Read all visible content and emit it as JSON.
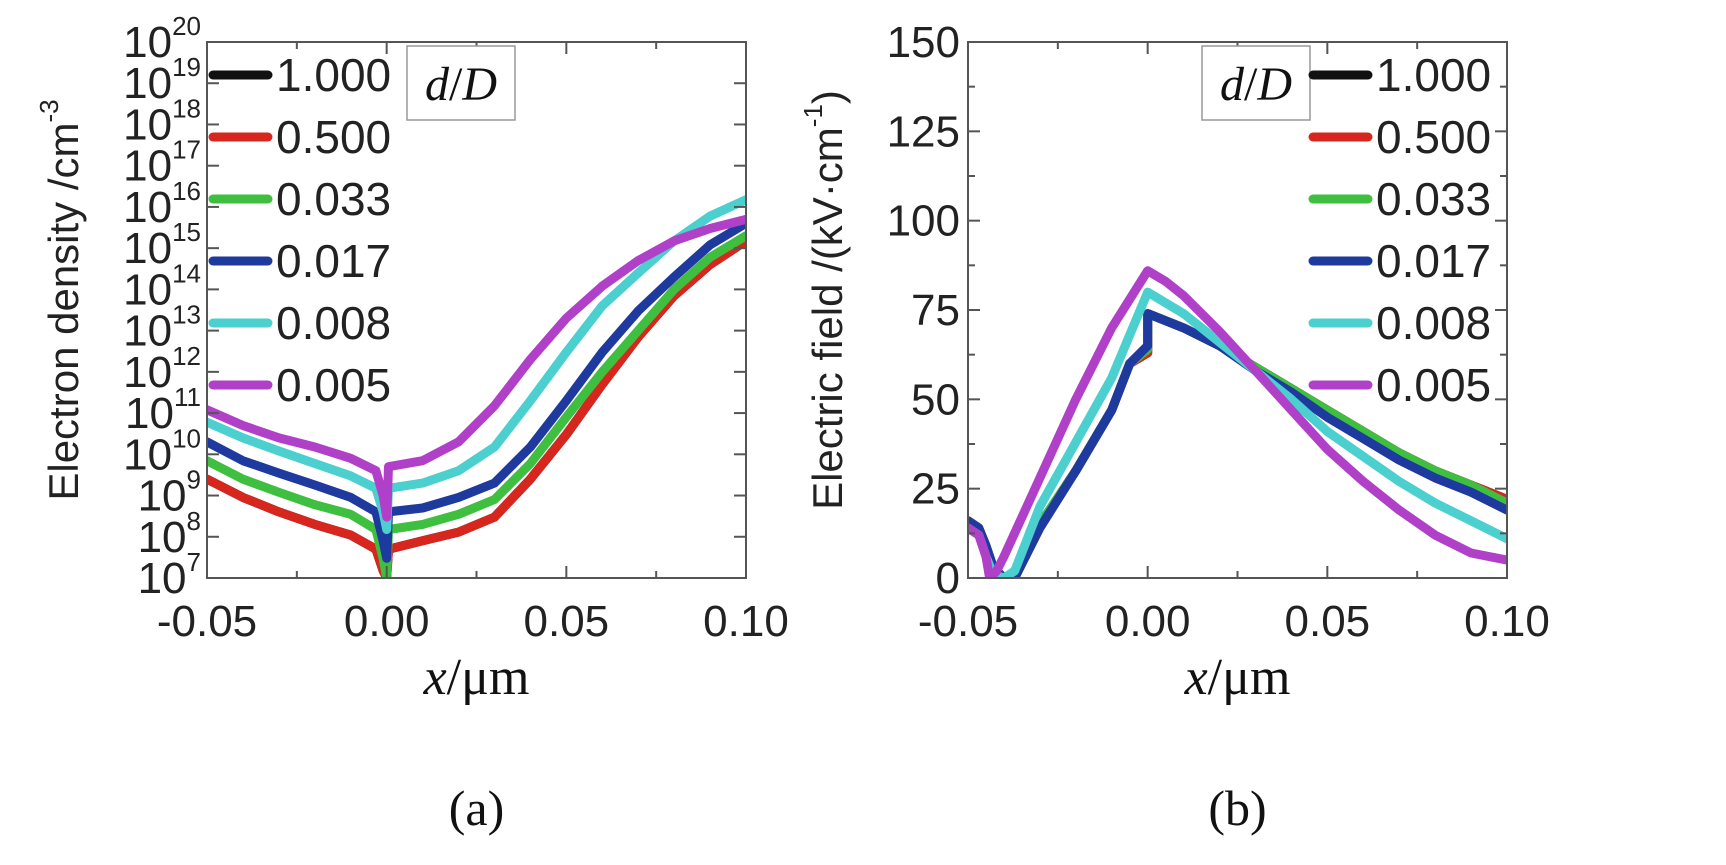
{
  "chart_data": [
    {
      "type": "line",
      "panel_label": "(a)",
      "xlabel": "x/μm",
      "xlabel_var": "x",
      "xlabel_unit": "/μm",
      "ylabel": "Electron density /cm⁻³",
      "ylabel_main": "Electron density /cm",
      "ylabel_exp": "-3",
      "y_scale": "log",
      "xlim": [
        -0.05,
        0.1
      ],
      "ylim": [
        10000000.0,
        1e+20
      ],
      "x_ticks": [
        -0.05,
        0.0,
        0.05,
        0.1
      ],
      "x_tick_labels": [
        "-0.05",
        "0.00",
        "0.05",
        "0.10"
      ],
      "y_tick_exponents": [
        7,
        8,
        9,
        10,
        11,
        12,
        13,
        14,
        15,
        16,
        17,
        18,
        19,
        20
      ],
      "y_tick_base": "10",
      "legend": {
        "title_var": "d",
        "title_slash": "/",
        "title_var2": "D",
        "placement": "upper-left"
      },
      "series": [
        {
          "name": "1.000",
          "color": "#111111",
          "x": [
            -0.05,
            -0.04,
            -0.03,
            -0.02,
            -0.01,
            -0.003,
            -0.001,
            0.0,
            0.0005,
            0.01,
            0.02,
            0.03,
            0.04,
            0.05,
            0.06,
            0.07,
            0.08,
            0.09,
            0.1
          ],
          "y": [
            2500000000.0,
            900000000.0,
            400000000.0,
            200000000.0,
            110000000.0,
            50000000.0,
            15000000.0,
            10000000.0,
            50000000.0,
            80000000.0,
            130000000.0,
            300000000.0,
            2500000000.0,
            30000000000.0,
            500000000000.0,
            7000000000000.0,
            70000000000000.0,
            400000000000000.0,
            1500000000000000.0
          ]
        },
        {
          "name": "0.500",
          "color": "#d7261e",
          "x": [
            -0.05,
            -0.04,
            -0.03,
            -0.02,
            -0.01,
            -0.003,
            -0.001,
            0.0,
            0.0005,
            0.01,
            0.02,
            0.03,
            0.04,
            0.05,
            0.06,
            0.07,
            0.08,
            0.09,
            0.1
          ],
          "y": [
            2500000000.0,
            900000000.0,
            400000000.0,
            200000000.0,
            110000000.0,
            50000000.0,
            15000000.0,
            10000000.0,
            50000000.0,
            80000000.0,
            130000000.0,
            300000000.0,
            2500000000.0,
            30000000000.0,
            500000000000.0,
            7000000000000.0,
            70000000000000.0,
            400000000000000.0,
            1500000000000000.0
          ]
        },
        {
          "name": "0.033",
          "color": "#3fbf3f",
          "x": [
            -0.05,
            -0.04,
            -0.03,
            -0.02,
            -0.01,
            -0.003,
            -0.001,
            0.0,
            0.0005,
            0.01,
            0.02,
            0.03,
            0.04,
            0.05,
            0.06,
            0.07,
            0.08,
            0.09,
            0.1
          ],
          "y": [
            7000000000.0,
            2500000000.0,
            1200000000.0,
            600000000.0,
            350000000.0,
            150000000.0,
            30000000.0,
            10000000.0,
            150000000.0,
            200000000.0,
            350000000.0,
            800000000.0,
            6000000000.0,
            80000000000.0,
            1000000000000.0,
            10000000000000.0,
            100000000000000.0,
            600000000000000.0,
            2000000000000000.0
          ]
        },
        {
          "name": "0.017",
          "color": "#1f3a9e",
          "x": [
            -0.05,
            -0.04,
            -0.03,
            -0.02,
            -0.01,
            -0.003,
            -0.001,
            0.0,
            0.0005,
            0.01,
            0.02,
            0.03,
            0.04,
            0.05,
            0.06,
            0.07,
            0.08,
            0.09,
            0.1
          ],
          "y": [
            20000000000.0,
            7000000000.0,
            3500000000.0,
            1800000000.0,
            900000000.0,
            400000000.0,
            80000000.0,
            30000000.0,
            400000000.0,
            500000000.0,
            900000000.0,
            2000000000.0,
            15000000000.0,
            200000000000.0,
            3000000000000.0,
            30000000000000.0,
            200000000000000.0,
            1200000000000000.0,
            4000000000000000.0
          ]
        },
        {
          "name": "0.008",
          "color": "#4ccfcf",
          "x": [
            -0.05,
            -0.04,
            -0.03,
            -0.02,
            -0.01,
            -0.003,
            -0.001,
            0.0,
            0.0005,
            0.01,
            0.02,
            0.03,
            0.04,
            0.05,
            0.06,
            0.07,
            0.08,
            0.09,
            0.1
          ],
          "y": [
            60000000000.0,
            25000000000.0,
            12000000000.0,
            6000000000.0,
            3000000000.0,
            1500000000.0,
            400000000.0,
            150000000.0,
            1500000000.0,
            2000000000.0,
            4000000000.0,
            15000000000.0,
            200000000000.0,
            3000000000000.0,
            40000000000000.0,
            250000000000000.0,
            1500000000000000.0,
            6000000000000000.0,
            1.5e+16
          ]
        },
        {
          "name": "0.005",
          "color": "#b040c8",
          "x": [
            -0.05,
            -0.04,
            -0.03,
            -0.02,
            -0.01,
            -0.003,
            -0.001,
            0.0,
            0.0005,
            0.01,
            0.02,
            0.03,
            0.04,
            0.05,
            0.06,
            0.07,
            0.08,
            0.09,
            0.1
          ],
          "y": [
            120000000000.0,
            50000000000.0,
            25000000000.0,
            15000000000.0,
            8000000000.0,
            4000000000.0,
            1000000000.0,
            300000000.0,
            5000000000.0,
            7000000000.0,
            20000000000.0,
            150000000000.0,
            2000000000000.0,
            20000000000000.0,
            120000000000000.0,
            500000000000000.0,
            1500000000000000.0,
            3000000000000000.0,
            5000000000000000.0
          ]
        }
      ]
    },
    {
      "type": "line",
      "panel_label": "(b)",
      "xlabel": "x/μm",
      "xlabel_var": "x",
      "xlabel_unit": "/μm",
      "ylabel": "Electric field /(kV·cm⁻¹)",
      "ylabel_main": "Electric field /(kV·cm",
      "ylabel_exp": "-1",
      "ylabel_close": ")",
      "y_scale": "linear",
      "xlim": [
        -0.05,
        0.1
      ],
      "ylim": [
        0,
        150
      ],
      "x_ticks": [
        -0.05,
        0.0,
        0.05,
        0.1
      ],
      "x_tick_labels": [
        "-0.05",
        "0.00",
        "0.05",
        "0.10"
      ],
      "y_ticks": [
        0,
        25,
        50,
        75,
        100,
        125,
        150
      ],
      "y_tick_labels": [
        "0",
        "25",
        "50",
        "75",
        "100",
        "125",
        "150"
      ],
      "legend": {
        "title_var": "d",
        "title_slash": "/",
        "title_var2": "D",
        "placement": "upper-right"
      },
      "series": [
        {
          "name": "1.000",
          "color": "#111111",
          "x": [
            -0.05,
            -0.047,
            -0.045,
            -0.043,
            -0.04,
            -0.037,
            -0.03,
            -0.02,
            -0.01,
            -0.005,
            0.0,
            0.0,
            0.01,
            0.02,
            0.03,
            0.04,
            0.05,
            0.06,
            0.07,
            0.08,
            0.09,
            0.1
          ],
          "y": [
            16,
            14,
            9,
            3,
            0,
            0,
            15,
            30,
            47,
            60,
            63,
            74,
            70,
            65,
            59,
            53,
            47,
            41,
            35,
            30,
            26,
            22
          ]
        },
        {
          "name": "0.500",
          "color": "#d7261e",
          "x": [
            -0.05,
            -0.047,
            -0.045,
            -0.043,
            -0.04,
            -0.037,
            -0.03,
            -0.02,
            -0.01,
            -0.005,
            0.0,
            0.0,
            0.01,
            0.02,
            0.03,
            0.04,
            0.05,
            0.06,
            0.07,
            0.08,
            0.09,
            0.1
          ],
          "y": [
            16,
            14,
            9,
            3,
            0,
            0,
            15,
            30,
            47,
            60,
            63,
            74,
            70,
            65,
            59,
            53,
            47,
            41,
            35,
            30,
            26,
            22
          ]
        },
        {
          "name": "0.033",
          "color": "#3fbf3f",
          "x": [
            -0.05,
            -0.047,
            -0.045,
            -0.043,
            -0.04,
            -0.037,
            -0.03,
            -0.02,
            -0.01,
            -0.005,
            0.0,
            0.0,
            0.01,
            0.02,
            0.03,
            0.04,
            0.05,
            0.06,
            0.07,
            0.08,
            0.09,
            0.1
          ],
          "y": [
            16,
            14,
            9,
            3,
            0,
            0,
            15,
            30,
            47,
            60,
            64,
            74,
            70,
            65,
            59,
            53,
            47,
            41,
            35,
            30,
            26,
            21
          ]
        },
        {
          "name": "0.017",
          "color": "#1f3a9e",
          "x": [
            -0.05,
            -0.047,
            -0.045,
            -0.043,
            -0.04,
            -0.037,
            -0.03,
            -0.02,
            -0.01,
            -0.005,
            0.0,
            0.0,
            0.01,
            0.02,
            0.03,
            0.04,
            0.05,
            0.06,
            0.07,
            0.08,
            0.09,
            0.1
          ],
          "y": [
            16,
            14,
            9,
            3,
            0,
            0,
            14,
            30,
            47,
            60,
            65,
            74,
            70,
            65,
            58,
            52,
            45,
            39,
            33,
            28,
            24,
            19
          ]
        },
        {
          "name": "0.008",
          "color": "#4ccfcf",
          "x": [
            -0.05,
            -0.047,
            -0.045,
            -0.043,
            -0.04,
            -0.037,
            -0.03,
            -0.02,
            -0.01,
            -0.005,
            0.0,
            0.005,
            0.01,
            0.02,
            0.03,
            0.04,
            0.05,
            0.06,
            0.07,
            0.08,
            0.09,
            0.1
          ],
          "y": [
            14,
            12,
            6,
            1,
            0,
            2,
            20,
            38,
            56,
            68,
            80,
            77,
            74,
            66,
            58,
            50,
            41,
            34,
            27,
            21,
            16,
            11
          ]
        },
        {
          "name": "0.005",
          "color": "#b040c8",
          "x": [
            -0.05,
            -0.047,
            -0.045,
            -0.044,
            -0.042,
            -0.04,
            -0.03,
            -0.02,
            -0.01,
            -0.005,
            0.0,
            0.005,
            0.01,
            0.02,
            0.03,
            0.04,
            0.05,
            0.06,
            0.07,
            0.08,
            0.09,
            0.1
          ],
          "y": [
            14,
            12,
            6,
            0,
            2,
            6,
            28,
            50,
            70,
            78,
            86,
            83,
            79,
            69,
            58,
            47,
            36,
            27,
            19,
            12,
            7,
            5
          ]
        }
      ]
    }
  ]
}
